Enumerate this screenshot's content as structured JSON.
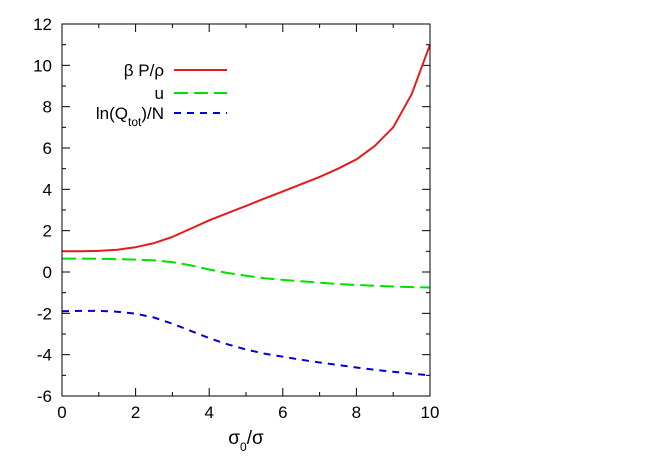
{
  "chart_data": {
    "type": "line",
    "title": "",
    "xlabel": {
      "base": "σ",
      "sub": "0",
      "rest": "/σ"
    },
    "ylabel": "",
    "xlim": [
      0,
      10
    ],
    "ylim": [
      -6,
      12
    ],
    "xticks": [
      0,
      2,
      4,
      6,
      8,
      10
    ],
    "yticks": [
      -6,
      -4,
      -2,
      0,
      2,
      4,
      6,
      8,
      10,
      12
    ],
    "grid": false,
    "legend_position": "top-left",
    "series": [
      {
        "name": "β P/ρ",
        "color": "#e41a1c",
        "dash": "solid",
        "x": [
          0,
          0.5,
          1,
          1.5,
          2,
          2.5,
          3,
          3.5,
          4,
          4.5,
          5,
          5.5,
          6,
          6.5,
          7,
          7.5,
          8,
          8.5,
          9,
          9.5,
          10
        ],
        "y": [
          1.0,
          1.0,
          1.02,
          1.08,
          1.2,
          1.4,
          1.7,
          2.1,
          2.5,
          2.85,
          3.2,
          3.55,
          3.9,
          4.25,
          4.6,
          5.0,
          5.45,
          6.1,
          7.0,
          8.6,
          11.0
        ]
      },
      {
        "name": "u",
        "color": "#00e000",
        "dash": "long",
        "x": [
          0,
          0.5,
          1,
          1.5,
          2,
          2.5,
          3,
          3.5,
          4,
          4.5,
          5,
          5.5,
          6,
          6.5,
          7,
          7.5,
          8,
          8.5,
          9,
          9.5,
          10
        ],
        "y": [
          0.65,
          0.65,
          0.64,
          0.62,
          0.6,
          0.56,
          0.48,
          0.32,
          0.12,
          -0.05,
          -0.18,
          -0.3,
          -0.38,
          -0.45,
          -0.52,
          -0.58,
          -0.63,
          -0.67,
          -0.7,
          -0.73,
          -0.75
        ]
      },
      {
        "name": {
          "base": "ln(Q",
          "sub": "tot",
          "rest": ")/N"
        },
        "color": "#0000d0",
        "dash": "short",
        "x": [
          0,
          0.5,
          1,
          1.5,
          2,
          2.5,
          3,
          3.5,
          4,
          4.5,
          5,
          5.5,
          6,
          6.5,
          7,
          7.5,
          8,
          8.5,
          9,
          9.5,
          10
        ],
        "y": [
          -1.9,
          -1.88,
          -1.88,
          -1.92,
          -2.02,
          -2.2,
          -2.5,
          -2.85,
          -3.2,
          -3.5,
          -3.75,
          -3.95,
          -4.1,
          -4.25,
          -4.38,
          -4.5,
          -4.62,
          -4.73,
          -4.83,
          -4.92,
          -5.0
        ]
      }
    ]
  }
}
